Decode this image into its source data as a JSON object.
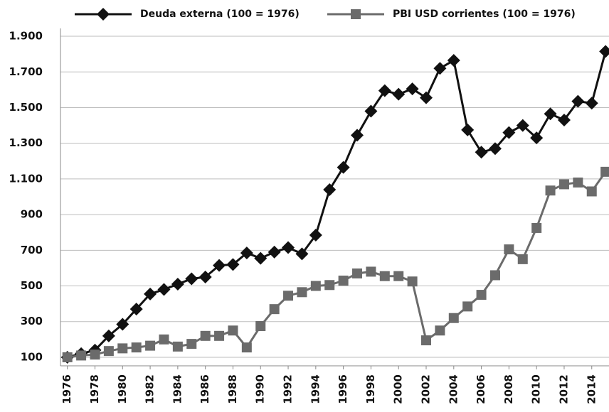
{
  "chart_data": {
    "type": "line",
    "x": [
      1976,
      1977,
      1978,
      1979,
      1980,
      1981,
      1982,
      1983,
      1984,
      1985,
      1986,
      1987,
      1988,
      1989,
      1990,
      1991,
      1992,
      1993,
      1994,
      1995,
      1996,
      1997,
      1998,
      1999,
      2000,
      2001,
      2002,
      2003,
      2004,
      2005,
      2006,
      2007,
      2008,
      2009,
      2010,
      2011,
      2012,
      2013,
      2014,
      2015
    ],
    "series": [
      {
        "name": "Deuda externa (100 = 1976)",
        "color": "#111111",
        "marker": "diamond",
        "values": [
          100,
          120,
          140,
          220,
          285,
          370,
          455,
          480,
          510,
          540,
          550,
          615,
          620,
          685,
          655,
          690,
          715,
          680,
          785,
          1040,
          1165,
          1345,
          1480,
          1595,
          1575,
          1605,
          1555,
          1720,
          1765,
          1375,
          1250,
          1270,
          1360,
          1400,
          1330,
          1465,
          1430,
          1535,
          1525,
          1815
        ]
      },
      {
        "name": "PBI USD corrientes (100 = 1976)",
        "color": "#6b6b6b",
        "marker": "square",
        "values": [
          100,
          110,
          115,
          135,
          150,
          155,
          165,
          200,
          160,
          175,
          220,
          220,
          250,
          155,
          275,
          370,
          445,
          465,
          500,
          505,
          530,
          570,
          580,
          555,
          555,
          525,
          195,
          250,
          320,
          385,
          450,
          560,
          705,
          650,
          825,
          1035,
          1070,
          1080,
          1030,
          1140
        ]
      }
    ],
    "xlim": [
      1975.5,
      2015.25
    ],
    "xticks": [
      1976,
      1978,
      1980,
      1982,
      1984,
      1986,
      1988,
      1990,
      1992,
      1994,
      1996,
      1998,
      2000,
      2002,
      2004,
      2006,
      2008,
      2010,
      2012,
      2014
    ],
    "ylim": [
      52,
      1944
    ],
    "yticks": [
      100,
      300,
      500,
      700,
      900,
      {
        "value": 1100,
        "label": "1.100"
      },
      {
        "value": 1300,
        "label": "1.300"
      },
      {
        "value": 1500,
        "label": "1.500"
      },
      {
        "value": 1700,
        "label": "1.700"
      },
      {
        "value": 1900,
        "label": "1.900"
      }
    ],
    "grid": true
  }
}
